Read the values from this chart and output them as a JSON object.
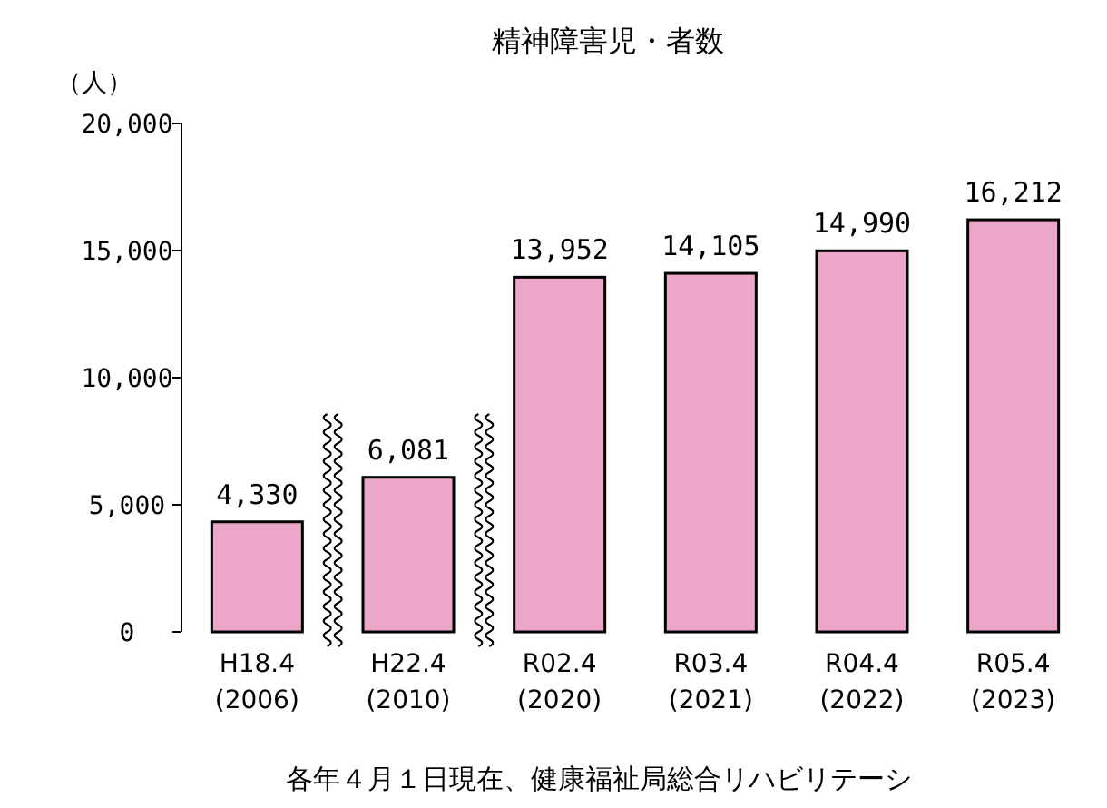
{
  "chart_data": {
    "type": "bar",
    "title": "精神障害児・者数",
    "ylabel": "（人）",
    "categories": [
      "H18.4\n(2006)",
      "H22.4\n(2010)",
      "R02.4\n(2020)",
      "R03.4\n(2021)",
      "R04.4\n(2022)",
      "R05.4\n(2023)"
    ],
    "values": [
      4330,
      6081,
      13952,
      14105,
      14990,
      16212
    ],
    "value_labels": [
      "4,330",
      "6,081",
      "13,952",
      "14,105",
      "14,990",
      "16,212"
    ],
    "color": "#eca6c8",
    "ylim": [
      0,
      20000
    ],
    "yticks": [
      0,
      {
        "value": 5000,
        "label": "5,000"
      },
      {
        "value": 10000,
        "label": "10,000"
      },
      {
        "value": 15000,
        "label": "15,000"
      },
      {
        "value": 20000,
        "label": "20,000"
      }
    ],
    "grid": false,
    "annotations": [
      "各年４月１日現在、健康福祉局総合リハビリテーシ"
    ]
  }
}
